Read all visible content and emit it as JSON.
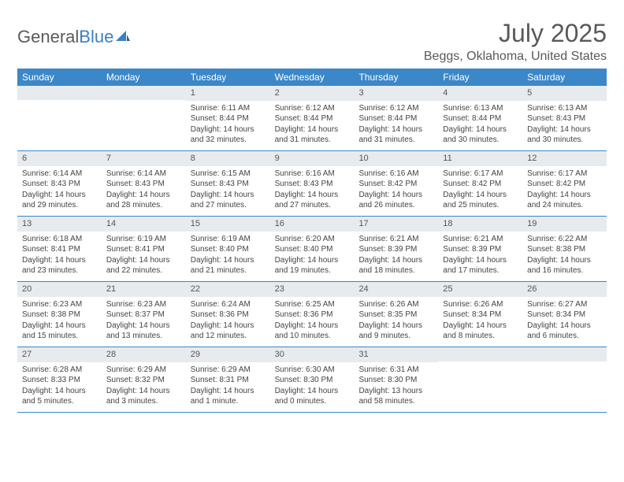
{
  "logo": {
    "text1": "General",
    "text2": "Blue"
  },
  "header": {
    "month": "July 2025",
    "location": "Beggs, Oklahoma, United States"
  },
  "colors": {
    "header_bg": "#3b87c8",
    "header_text": "#ffffff",
    "daybar_bg": "#e8ebee",
    "border": "#3b87c8",
    "title_color": "#595959",
    "body_text": "#444444"
  },
  "daysOfWeek": [
    "Sunday",
    "Monday",
    "Tuesday",
    "Wednesday",
    "Thursday",
    "Friday",
    "Saturday"
  ],
  "weeks": [
    [
      {
        "blank": true
      },
      {
        "blank": true
      },
      {
        "n": "1",
        "sunrise": "6:11 AM",
        "sunset": "8:44 PM",
        "daylight": "14 hours and 32 minutes."
      },
      {
        "n": "2",
        "sunrise": "6:12 AM",
        "sunset": "8:44 PM",
        "daylight": "14 hours and 31 minutes."
      },
      {
        "n": "3",
        "sunrise": "6:12 AM",
        "sunset": "8:44 PM",
        "daylight": "14 hours and 31 minutes."
      },
      {
        "n": "4",
        "sunrise": "6:13 AM",
        "sunset": "8:44 PM",
        "daylight": "14 hours and 30 minutes."
      },
      {
        "n": "5",
        "sunrise": "6:13 AM",
        "sunset": "8:43 PM",
        "daylight": "14 hours and 30 minutes."
      }
    ],
    [
      {
        "n": "6",
        "sunrise": "6:14 AM",
        "sunset": "8:43 PM",
        "daylight": "14 hours and 29 minutes."
      },
      {
        "n": "7",
        "sunrise": "6:14 AM",
        "sunset": "8:43 PM",
        "daylight": "14 hours and 28 minutes."
      },
      {
        "n": "8",
        "sunrise": "6:15 AM",
        "sunset": "8:43 PM",
        "daylight": "14 hours and 27 minutes."
      },
      {
        "n": "9",
        "sunrise": "6:16 AM",
        "sunset": "8:43 PM",
        "daylight": "14 hours and 27 minutes."
      },
      {
        "n": "10",
        "sunrise": "6:16 AM",
        "sunset": "8:42 PM",
        "daylight": "14 hours and 26 minutes."
      },
      {
        "n": "11",
        "sunrise": "6:17 AM",
        "sunset": "8:42 PM",
        "daylight": "14 hours and 25 minutes."
      },
      {
        "n": "12",
        "sunrise": "6:17 AM",
        "sunset": "8:42 PM",
        "daylight": "14 hours and 24 minutes."
      }
    ],
    [
      {
        "n": "13",
        "sunrise": "6:18 AM",
        "sunset": "8:41 PM",
        "daylight": "14 hours and 23 minutes."
      },
      {
        "n": "14",
        "sunrise": "6:19 AM",
        "sunset": "8:41 PM",
        "daylight": "14 hours and 22 minutes."
      },
      {
        "n": "15",
        "sunrise": "6:19 AM",
        "sunset": "8:40 PM",
        "daylight": "14 hours and 21 minutes."
      },
      {
        "n": "16",
        "sunrise": "6:20 AM",
        "sunset": "8:40 PM",
        "daylight": "14 hours and 19 minutes."
      },
      {
        "n": "17",
        "sunrise": "6:21 AM",
        "sunset": "8:39 PM",
        "daylight": "14 hours and 18 minutes."
      },
      {
        "n": "18",
        "sunrise": "6:21 AM",
        "sunset": "8:39 PM",
        "daylight": "14 hours and 17 minutes."
      },
      {
        "n": "19",
        "sunrise": "6:22 AM",
        "sunset": "8:38 PM",
        "daylight": "14 hours and 16 minutes."
      }
    ],
    [
      {
        "n": "20",
        "sunrise": "6:23 AM",
        "sunset": "8:38 PM",
        "daylight": "14 hours and 15 minutes."
      },
      {
        "n": "21",
        "sunrise": "6:23 AM",
        "sunset": "8:37 PM",
        "daylight": "14 hours and 13 minutes."
      },
      {
        "n": "22",
        "sunrise": "6:24 AM",
        "sunset": "8:36 PM",
        "daylight": "14 hours and 12 minutes."
      },
      {
        "n": "23",
        "sunrise": "6:25 AM",
        "sunset": "8:36 PM",
        "daylight": "14 hours and 10 minutes."
      },
      {
        "n": "24",
        "sunrise": "6:26 AM",
        "sunset": "8:35 PM",
        "daylight": "14 hours and 9 minutes."
      },
      {
        "n": "25",
        "sunrise": "6:26 AM",
        "sunset": "8:34 PM",
        "daylight": "14 hours and 8 minutes."
      },
      {
        "n": "26",
        "sunrise": "6:27 AM",
        "sunset": "8:34 PM",
        "daylight": "14 hours and 6 minutes."
      }
    ],
    [
      {
        "n": "27",
        "sunrise": "6:28 AM",
        "sunset": "8:33 PM",
        "daylight": "14 hours and 5 minutes."
      },
      {
        "n": "28",
        "sunrise": "6:29 AM",
        "sunset": "8:32 PM",
        "daylight": "14 hours and 3 minutes."
      },
      {
        "n": "29",
        "sunrise": "6:29 AM",
        "sunset": "8:31 PM",
        "daylight": "14 hours and 1 minute."
      },
      {
        "n": "30",
        "sunrise": "6:30 AM",
        "sunset": "8:30 PM",
        "daylight": "14 hours and 0 minutes."
      },
      {
        "n": "31",
        "sunrise": "6:31 AM",
        "sunset": "8:30 PM",
        "daylight": "13 hours and 58 minutes."
      },
      {
        "blank": true
      },
      {
        "blank": true
      }
    ]
  ],
  "labels": {
    "sunrise": "Sunrise:",
    "sunset": "Sunset:",
    "daylight": "Daylight:"
  }
}
